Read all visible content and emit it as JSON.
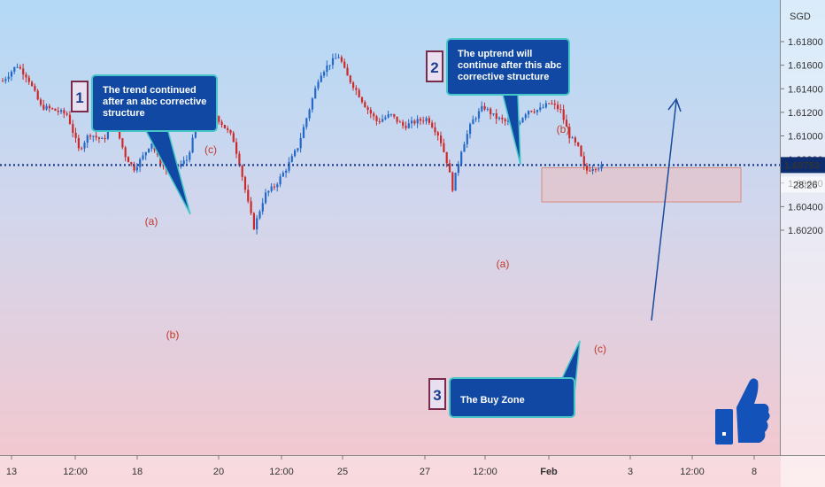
{
  "chart_data": {
    "type": "candlestick",
    "currency_label": "SGD",
    "y_ticks": [
      "1.61800",
      "1.61600",
      "1.61400",
      "1.61200",
      "1.61000",
      "1.60800",
      "1.60600",
      "1.60400",
      "1.60200"
    ],
    "y_tick_values": [
      1.618,
      1.616,
      1.614,
      1.612,
      1.61,
      1.608,
      1.606,
      1.604,
      1.602
    ],
    "ylim": [
      1.6003,
      1.6203
    ],
    "x_ticks": [
      "13",
      "12:00",
      "18",
      "20",
      "12:00",
      "25",
      "27",
      "12:00",
      "Feb",
      "3",
      "12:00",
      "8"
    ],
    "current_price": "1.60753",
    "current_price_value": 1.60753,
    "countdown": "28:26",
    "wave_labels": [
      "(a)",
      "(b)",
      "(c)",
      "(a)",
      "(b)",
      "(c)"
    ],
    "callouts": [
      {
        "number": "1",
        "text": [
          "The trend continued",
          "after an abc corrective",
          "structure"
        ]
      },
      {
        "number": "2",
        "text": [
          "The uptrend will",
          "continue after this abc",
          "corrective structure"
        ]
      },
      {
        "number": "3",
        "text": [
          "The Buy Zone"
        ]
      }
    ],
    "buy_zone": {
      "top": 1.6073,
      "bottom": 1.6044
    },
    "path_keypoints": [
      [
        0,
        1.6145
      ],
      [
        18,
        1.616
      ],
      [
        30,
        1.615
      ],
      [
        45,
        1.6125
      ],
      [
        60,
        1.6122
      ],
      [
        75,
        1.6118
      ],
      [
        88,
        1.6088
      ],
      [
        100,
        1.6102
      ],
      [
        115,
        1.6096
      ],
      [
        128,
        1.6112
      ],
      [
        140,
        1.6084
      ],
      [
        150,
        1.6072
      ],
      [
        160,
        1.6082
      ],
      [
        170,
        1.6095
      ],
      [
        178,
        1.608
      ],
      [
        188,
        1.607
      ],
      [
        200,
        1.6074
      ],
      [
        210,
        1.608
      ],
      [
        222,
        1.611
      ],
      [
        238,
        1.6122
      ],
      [
        252,
        1.6108
      ],
      [
        262,
        1.6098
      ],
      [
        270,
        1.6075
      ],
      [
        280,
        1.604
      ],
      [
        286,
        1.6022
      ],
      [
        298,
        1.605
      ],
      [
        310,
        1.6058
      ],
      [
        322,
        1.6072
      ],
      [
        335,
        1.609
      ],
      [
        348,
        1.6122
      ],
      [
        360,
        1.6152
      ],
      [
        372,
        1.6162
      ],
      [
        382,
        1.6168
      ],
      [
        390,
        1.6152
      ],
      [
        402,
        1.6138
      ],
      [
        412,
        1.6125
      ],
      [
        425,
        1.6112
      ],
      [
        440,
        1.6118
      ],
      [
        455,
        1.6108
      ],
      [
        468,
        1.6112
      ],
      [
        482,
        1.6115
      ],
      [
        495,
        1.61
      ],
      [
        505,
        1.6075
      ],
      [
        510,
        1.6055
      ],
      [
        520,
        1.6088
      ],
      [
        532,
        1.6112
      ],
      [
        545,
        1.6125
      ],
      [
        558,
        1.6116
      ],
      [
        570,
        1.6112
      ],
      [
        583,
        1.611
      ],
      [
        595,
        1.6122
      ],
      [
        608,
        1.6122
      ],
      [
        620,
        1.6128
      ],
      [
        632,
        1.6122
      ],
      [
        642,
        1.61
      ],
      [
        652,
        1.609
      ],
      [
        660,
        1.607
      ],
      [
        670,
        1.6074
      ],
      [
        680,
        1.6074
      ]
    ]
  }
}
